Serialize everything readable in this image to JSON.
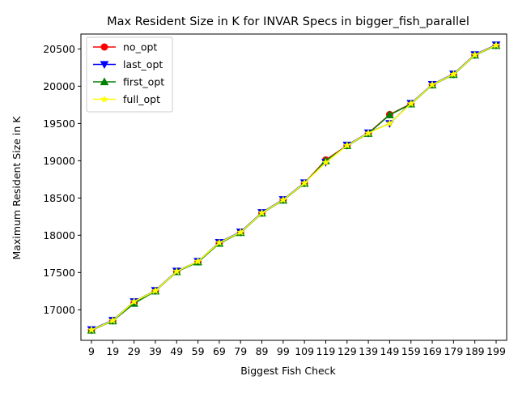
{
  "chart_data": {
    "type": "line",
    "title": "Max Resident Size in K for INVAR Specs in bigger_fish_parallel",
    "xlabel": "Biggest Fish Check",
    "ylabel": "Maximum Resident Size in K",
    "categories": [
      "9",
      "19",
      "29",
      "39",
      "49",
      "59",
      "69",
      "79",
      "89",
      "99",
      "109",
      "119",
      "129",
      "139",
      "149",
      "159",
      "169",
      "179",
      "189",
      "199"
    ],
    "yticks": [
      17000,
      17500,
      18000,
      18500,
      19000,
      19500,
      20000,
      20500
    ],
    "ylim": [
      16590,
      20700
    ],
    "grid": false,
    "legend_position": "top-left",
    "series": [
      {
        "name": "no_opt",
        "color": "#ff0000",
        "marker": "circle",
        "values": [
          16730,
          16855,
          17090,
          17255,
          17515,
          17645,
          17895,
          18040,
          18300,
          18475,
          18700,
          19010,
          19205,
          19370,
          19620,
          19765,
          20020,
          20160,
          20420,
          20550
        ]
      },
      {
        "name": "last_opt",
        "color": "#0000ff",
        "marker": "triangle-down",
        "values": [
          16735,
          16860,
          17110,
          17260,
          17520,
          17650,
          17905,
          18045,
          18305,
          18480,
          18705,
          18980,
          19210,
          19375,
          19500,
          19770,
          20025,
          20165,
          20425,
          20555
        ]
      },
      {
        "name": "first_opt",
        "color": "#008000",
        "marker": "triangle-up",
        "values": [
          16725,
          16850,
          17085,
          17250,
          17510,
          17640,
          17890,
          18035,
          18295,
          18470,
          18695,
          19000,
          19200,
          19365,
          19615,
          19760,
          20015,
          20155,
          20415,
          20545
        ]
      },
      {
        "name": "full_opt",
        "color": "#ffff00",
        "marker": "star",
        "values": [
          16730,
          16855,
          17110,
          17255,
          17515,
          17650,
          17900,
          18040,
          18300,
          18475,
          18700,
          18975,
          19205,
          19370,
          19500,
          19765,
          20020,
          20160,
          20420,
          20550
        ]
      }
    ]
  }
}
